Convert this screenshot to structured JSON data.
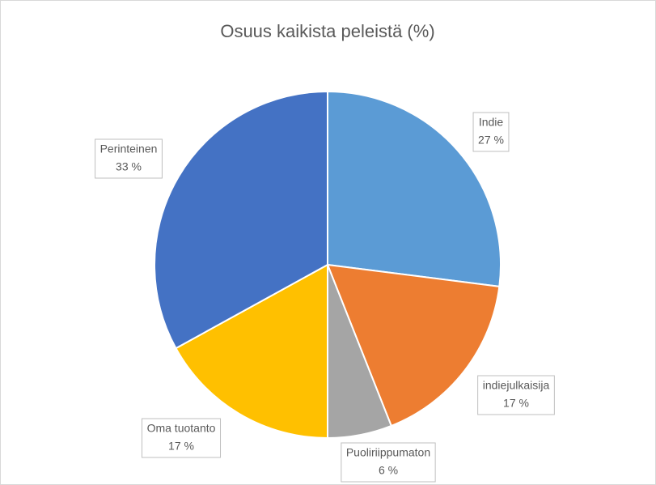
{
  "chart_data": {
    "type": "pie",
    "title": "Osuus kaikista peleistä (%)",
    "categories": [
      "Indie",
      "indiejulkaisija",
      "Puoliriippumaton",
      "Oma tuotanto",
      "Perinteinen"
    ],
    "values": [
      27,
      17,
      6,
      17,
      33
    ],
    "value_labels": [
      "27 %",
      "17 %",
      "6 %",
      "17 %",
      "33 %"
    ],
    "colors": [
      "#5b9bd5",
      "#ed7d31",
      "#a5a5a5",
      "#ffc000",
      "#4472c4"
    ]
  }
}
